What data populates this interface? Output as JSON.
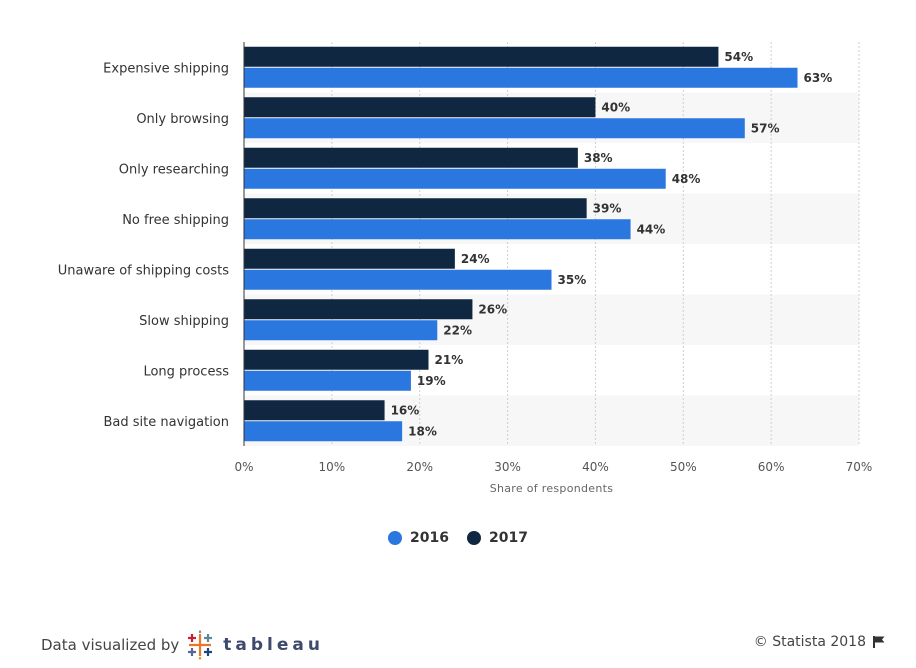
{
  "chart_data": {
    "type": "bar",
    "orientation": "horizontal",
    "categories": [
      "Expensive shipping",
      "Only browsing",
      "Only researching",
      "No free shipping",
      "Unaware of shipping costs",
      "Slow shipping",
      "Long process",
      "Bad site navigation"
    ],
    "series": [
      {
        "name": "2017",
        "color": "#0f2740",
        "values": [
          54,
          40,
          38,
          39,
          24,
          26,
          21,
          16
        ]
      },
      {
        "name": "2016",
        "color": "#2a77e0",
        "values": [
          63,
          57,
          48,
          44,
          35,
          22,
          19,
          18
        ]
      }
    ],
    "value_suffix": "%",
    "xlabel": "Share of respondents",
    "xlim": [
      0,
      70
    ],
    "xticks": [
      0,
      10,
      20,
      30,
      40,
      50,
      60,
      70
    ],
    "xtick_labels": [
      "0%",
      "10%",
      "20%",
      "30%",
      "40%",
      "50%",
      "60%",
      "70%"
    ],
    "grid": true,
    "legend_position": "bottom-center",
    "legend": [
      {
        "name": "2016",
        "color": "#2a77e0"
      },
      {
        "name": "2017",
        "color": "#0f2740"
      }
    ]
  },
  "footer": {
    "credit_prefix": "Data visualized by",
    "credit_brand": "tableau",
    "copyright": "© Statista 2018",
    "flag_icon": "flag-icon"
  }
}
